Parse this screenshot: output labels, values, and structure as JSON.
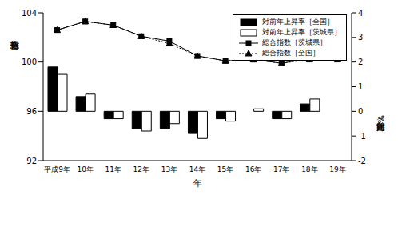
{
  "chart_data": {
    "type": "combo",
    "categories": [
      "平成9年",
      "10年",
      "11年",
      "12年",
      "13年",
      "14年",
      "15年",
      "16年",
      "17年",
      "18年",
      "19年"
    ],
    "x_label": "年",
    "y_label": "総合指数",
    "y2_label": "対前年比（%）",
    "ylim": [
      92,
      104
    ],
    "yticks": [
      92,
      96,
      100,
      104
    ],
    "y2lim": [
      -2,
      4
    ],
    "y2ticks": [
      -2,
      -1,
      0,
      1,
      2,
      3,
      4
    ],
    "legend": "upper right",
    "grid": false,
    "series": [
      {
        "name": "対前年上昇率［全国］",
        "type": "bar",
        "axis": "y2",
        "color": "#000000",
        "values": [
          1.8,
          0.6,
          -0.3,
          -0.7,
          -0.7,
          -0.9,
          -0.3,
          0.0,
          -0.3,
          0.3,
          null
        ]
      },
      {
        "name": "対前年上昇率［茨城県］",
        "type": "bar",
        "axis": "y2",
        "color": "#ffffff",
        "values": [
          1.5,
          0.7,
          -0.3,
          -0.8,
          -0.5,
          -1.1,
          -0.4,
          0.1,
          -0.3,
          0.5,
          null
        ]
      },
      {
        "name": "総合指数［茨城県］",
        "type": "line",
        "axis": "y",
        "color": "#000000",
        "marker": "square",
        "line_style": "solid",
        "values": [
          102.6,
          103.3,
          103.0,
          102.1,
          101.7,
          100.5,
          100.1,
          100.2,
          99.9,
          100.3,
          100.3
        ]
      },
      {
        "name": "総合指数［全国］",
        "type": "line",
        "axis": "y",
        "color": "#000000",
        "marker": "triangle",
        "line_style": "dotted",
        "values": [
          102.6,
          103.3,
          103.0,
          102.1,
          101.5,
          100.5,
          100.1,
          100.2,
          99.9,
          100.2,
          100.2
        ]
      }
    ]
  }
}
